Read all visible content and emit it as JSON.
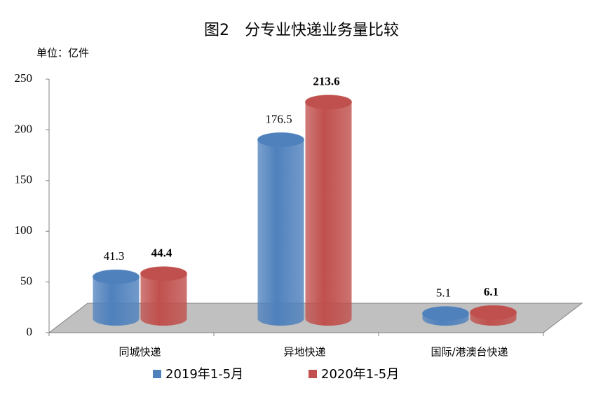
{
  "chart_data": {
    "type": "bar3d-cylinder",
    "title": "图2　分专业快递业务量比较",
    "unit_label": "单位：亿件",
    "categories": [
      "同城快递",
      "异地快递",
      "国际/港澳台快递"
    ],
    "series": [
      {
        "name": "2019年1-5月",
        "color": "#4f81bd",
        "values": [
          41.3,
          176.5,
          5.1
        ]
      },
      {
        "name": "2020年1-5月",
        "color": "#c0504d",
        "values": [
          44.4,
          213.6,
          6.1
        ],
        "bold_labels": true
      }
    ],
    "ylim": [
      0,
      250
    ],
    "yticks": [
      0,
      50,
      100,
      150,
      200,
      250
    ],
    "legend": "bottom"
  }
}
